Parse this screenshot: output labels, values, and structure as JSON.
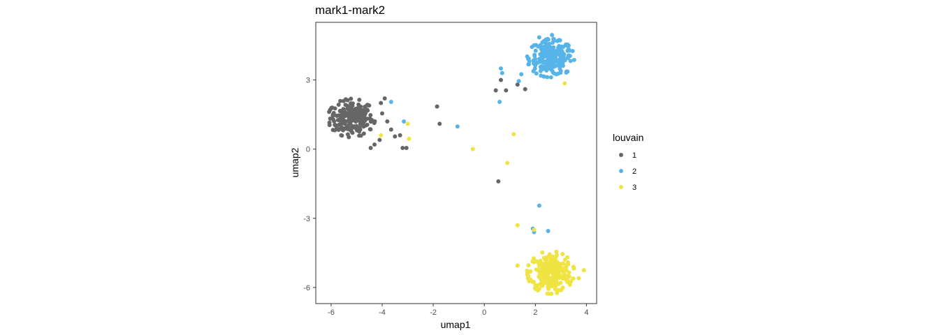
{
  "chart_data": {
    "type": "scatter",
    "title": "mark1-mark2",
    "xlabel": "umap1",
    "ylabel": "umap2",
    "xlim": [
      -6.6,
      4.4
    ],
    "ylim": [
      -6.7,
      5.5
    ],
    "xticks": [
      -6,
      -4,
      -2,
      0,
      2,
      4
    ],
    "yticks": [
      -6,
      -3,
      0,
      3
    ],
    "grid": false,
    "legend": {
      "title": "louvain",
      "placement": "right"
    },
    "series": [
      {
        "name": "1",
        "color": "#666666",
        "clusters": [
          {
            "center": [
              -5.2,
              1.35
            ],
            "spread": [
              0.42,
              0.38
            ],
            "count": 210
          }
        ],
        "points": [
          [
            -3.9,
            2.2
          ],
          [
            -4.0,
            1.55
          ],
          [
            -3.65,
            0.85
          ],
          [
            -3.3,
            0.6
          ],
          [
            -3.2,
            0.05
          ],
          [
            -3.05,
            0.05
          ],
          [
            -4.1,
            0.4
          ],
          [
            -4.3,
            0.2
          ],
          [
            -4.45,
            0.05
          ],
          [
            -3.5,
            0.55
          ],
          [
            -3.8,
            1.2
          ],
          [
            -4.05,
            2.0
          ],
          [
            -1.85,
            1.85
          ],
          [
            -1.75,
            1.1
          ],
          [
            0.45,
            2.55
          ],
          [
            0.85,
            2.55
          ],
          [
            0.65,
            3.0
          ],
          [
            1.3,
            2.8
          ],
          [
            1.6,
            2.6
          ],
          [
            0.55,
            -1.4
          ]
        ]
      },
      {
        "name": "2",
        "color": "#56B4E9",
        "clusters": [
          {
            "center": [
              2.6,
              3.95
            ],
            "spread": [
              0.42,
              0.38
            ],
            "count": 230
          }
        ],
        "points": [
          [
            -3.65,
            2.05
          ],
          [
            -3.15,
            1.2
          ],
          [
            -1.05,
            0.98
          ],
          [
            0.6,
            2.05
          ],
          [
            0.7,
            3.3
          ],
          [
            0.65,
            3.5
          ],
          [
            1.35,
            2.95
          ],
          [
            1.45,
            3.25
          ],
          [
            1.9,
            -3.45
          ],
          [
            1.95,
            -3.6
          ],
          [
            2.15,
            -2.45
          ],
          [
            2.5,
            -3.55
          ],
          [
            2.15,
            4.85
          ],
          [
            2.65,
            4.95
          ]
        ]
      },
      {
        "name": "3",
        "color": "#F0E442",
        "clusters": [
          {
            "center": [
              2.6,
              -5.35
            ],
            "spread": [
              0.42,
              0.42
            ],
            "count": 260
          }
        ],
        "points": [
          [
            -4.05,
            0.6
          ],
          [
            -3.0,
            1.1
          ],
          [
            -2.95,
            0.45
          ],
          [
            -0.45,
            0.0
          ],
          [
            0.9,
            -0.6
          ],
          [
            1.15,
            0.65
          ],
          [
            1.3,
            -3.3
          ],
          [
            1.95,
            -3.5
          ],
          [
            3.15,
            2.85
          ],
          [
            1.3,
            -5.05
          ],
          [
            3.9,
            -5.25
          ],
          [
            3.7,
            -5.6
          ]
        ]
      }
    ]
  }
}
